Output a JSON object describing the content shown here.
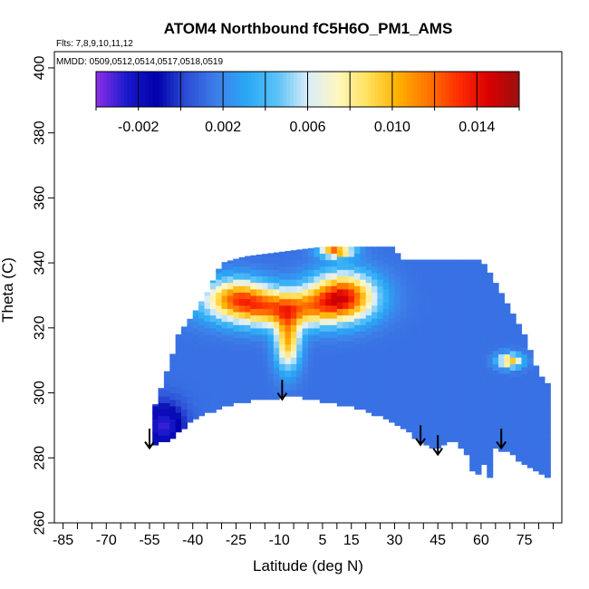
{
  "chart_data": {
    "type": "heatmap",
    "title": "ATOM4 Northbound fC5H6O_PM1_AMS",
    "flights_note": "Flts: 7,8,9,10,11,12",
    "dates_note": "MMDD: 0509,0512,0514,0517,0518,0519",
    "xlabel": "Latitude (deg N)",
    "ylabel": "Theta (C)",
    "xlim": [
      -88,
      88
    ],
    "ylim": [
      260,
      405
    ],
    "x_ticks": [
      -85,
      -70,
      -55,
      -40,
      -25,
      -10,
      5,
      15,
      30,
      45,
      60,
      75
    ],
    "y_ticks": [
      260,
      280,
      300,
      320,
      340,
      360,
      380,
      400
    ],
    "colorbar": {
      "min": -0.004,
      "max": 0.016,
      "ticks": [
        -0.002,
        0.002,
        0.006,
        0.01,
        0.014
      ],
      "tick_labels": [
        "-0.002",
        "0.002",
        "0.006",
        "0.010",
        "0.014"
      ],
      "colors": [
        "#8f2fe8",
        "#1a1acd",
        "#0000aa",
        "#2d4ed6",
        "#3d7fe9",
        "#29a8f5",
        "#5bc2f8",
        "#d8ecfb",
        "#fff7c0",
        "#ffe15a",
        "#ffb000",
        "#ff7400",
        "#ff2d00",
        "#d80000",
        "#9c1010"
      ]
    },
    "background_value": 0.0013,
    "hotspots": [
      {
        "lat": 12,
        "theta": 330,
        "value": 0.013,
        "spread_lat": 8,
        "spread_theta": 5
      },
      {
        "lat": -10,
        "theta": 326,
        "value": 0.011,
        "spread_lat": 14,
        "spread_theta": 4
      },
      {
        "lat": -25,
        "theta": 330,
        "value": 0.009,
        "spread_lat": 8,
        "spread_theta": 4
      },
      {
        "lat": -7,
        "theta": 316,
        "value": 0.01,
        "spread_lat": 3,
        "spread_theta": 6
      },
      {
        "lat": 10,
        "theta": 344,
        "value": 0.012,
        "spread_lat": 4,
        "spread_theta": 1.5
      },
      {
        "lat": -50,
        "theta": 290,
        "value": -0.003,
        "spread_lat": 5,
        "spread_theta": 5
      },
      {
        "lat": 70,
        "theta": 310,
        "value": 0.01,
        "spread_lat": 3,
        "spread_theta": 1.5
      }
    ],
    "ceiling_theta": [
      [
        -54,
        294
      ],
      [
        -50,
        304
      ],
      [
        -47,
        312
      ],
      [
        -45,
        318
      ],
      [
        -40,
        324
      ],
      [
        -35,
        331
      ],
      [
        -30,
        340
      ],
      [
        -22,
        342
      ],
      [
        5,
        345
      ],
      [
        30,
        345
      ],
      [
        32,
        341
      ],
      [
        60,
        341
      ],
      [
        63,
        337
      ],
      [
        70,
        326
      ],
      [
        75,
        318
      ],
      [
        80,
        306
      ],
      [
        84,
        302
      ]
    ],
    "floor_theta": [
      [
        -54,
        284
      ],
      [
        -48,
        286
      ],
      [
        -40,
        292
      ],
      [
        -30,
        296
      ],
      [
        -20,
        298
      ],
      [
        -10,
        299
      ],
      [
        -2,
        299
      ],
      [
        10,
        297
      ],
      [
        20,
        295
      ],
      [
        30,
        291
      ],
      [
        40,
        285
      ],
      [
        45,
        283
      ],
      [
        50,
        286
      ],
      [
        55,
        281
      ],
      [
        58,
        274
      ],
      [
        61,
        278
      ],
      [
        63,
        274
      ],
      [
        65,
        283
      ],
      [
        70,
        282
      ],
      [
        75,
        278
      ],
      [
        84,
        274
      ]
    ],
    "profile_arrows": [
      {
        "lat": -55,
        "theta_top": 289,
        "theta_bottom": 283
      },
      {
        "lat": -9,
        "theta_top": 304,
        "theta_bottom": 298
      },
      {
        "lat": 39,
        "theta_top": 290,
        "theta_bottom": 284
      },
      {
        "lat": 45,
        "theta_top": 287,
        "theta_bottom": 281
      },
      {
        "lat": 67,
        "theta_top": 289,
        "theta_bottom": 283
      }
    ]
  }
}
